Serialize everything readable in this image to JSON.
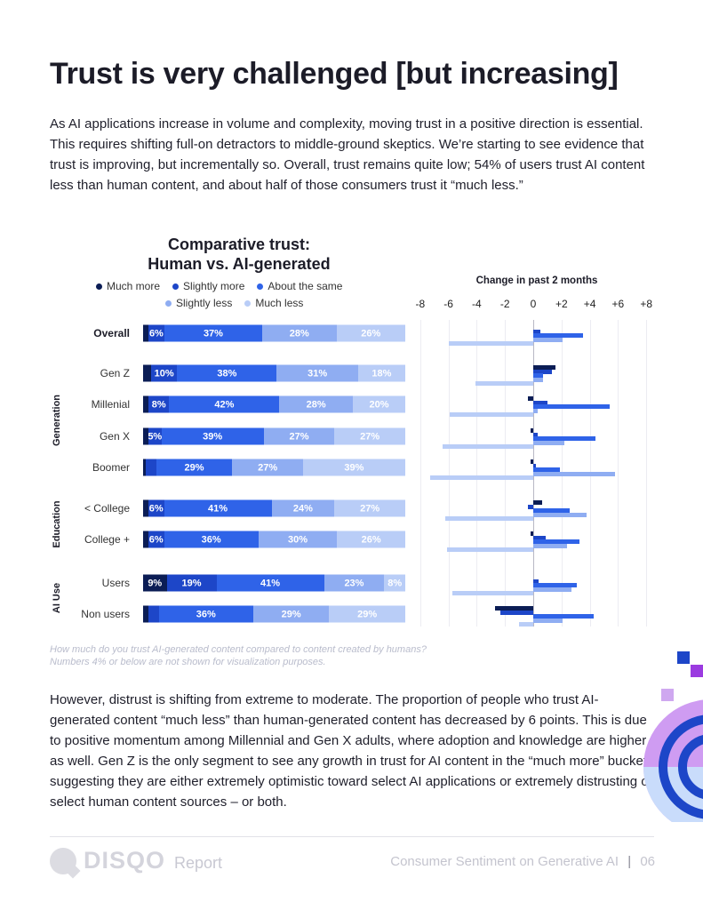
{
  "page": {
    "title": "Trust is very challenged [but increasing]",
    "intro": "As AI applications increase in volume and complexity, moving trust in a positive direction is essential. This requires shifting full-on detractors to middle-ground skeptics. We’re starting to see evidence that trust is improving, but incrementally so. Overall, trust remains quite low; 54% of users trust AI content less than human content, and about half of those consumers trust it “much less.”",
    "note_line1": "How much do you trust AI-generated content compared to content created by humans?",
    "note_line2": "Numbers 4% or below are not shown for visualization purposes.",
    "outro": "However, distrust is shifting from extreme to moderate. The proportion of people who trust AI-generated content “much less” than human-generated content has decreased by 6 points. This is due to positive momentum among Millennial and Gen X adults, where adoption and knowledge are higher as well. Gen Z is the only segment to see any growth in trust for AI content in the “much more” bucket, suggesting they are either extremely optimistic toward select AI applications or extremely distrusting of select human content sources – or both."
  },
  "footer": {
    "logo_word": "DISQO",
    "logo_sub": "Report",
    "report_name": "Consumer Sentiment on Generative AI",
    "separator": "|",
    "page_number": "06"
  },
  "colors": {
    "much_more": "#0b1d55",
    "slightly_more": "#1d46c8",
    "about_same": "#2f63e8",
    "slightly_less": "#8fadf2",
    "much_less": "#b9cdf7"
  },
  "chart_data": [
    {
      "type": "bar",
      "orientation": "horizontal-stacked",
      "title_line1": "Comparative trust:",
      "title_line2": "Human vs. AI-generated",
      "legend": [
        "Much more",
        "Slightly more",
        "About the same",
        "Slightly less",
        "Much less"
      ],
      "groups": [
        {
          "name": "",
          "rows": [
            0
          ]
        },
        {
          "name": "Generation",
          "rows": [
            1,
            2,
            3,
            4
          ]
        },
        {
          "name": "Education",
          "rows": [
            5,
            6
          ]
        },
        {
          "name": "AI Use",
          "rows": [
            7,
            8
          ]
        }
      ],
      "rows": [
        {
          "label": "Overall",
          "bold": true,
          "values": [
            2,
            6,
            37,
            28,
            26
          ],
          "labels": [
            "",
            "6%",
            "37%",
            "28%",
            "26%"
          ]
        },
        {
          "label": "Gen Z",
          "values": [
            3,
            10,
            38,
            31,
            18
          ],
          "labels": [
            "",
            "10%",
            "38%",
            "31%",
            "18%"
          ]
        },
        {
          "label": "Millenial",
          "values": [
            2,
            8,
            42,
            28,
            20
          ],
          "labels": [
            "",
            "8%",
            "42%",
            "28%",
            "20%"
          ]
        },
        {
          "label": "Gen X",
          "values": [
            2,
            5,
            39,
            27,
            27
          ],
          "labels": [
            "",
            "5%",
            "39%",
            "27%",
            "27%"
          ]
        },
        {
          "label": "Boomer",
          "values": [
            1,
            4,
            29,
            27,
            39
          ],
          "labels": [
            "",
            "",
            "29%",
            "27%",
            "39%"
          ]
        },
        {
          "label": "< College",
          "values": [
            2,
            6,
            41,
            24,
            27
          ],
          "labels": [
            "",
            "6%",
            "41%",
            "24%",
            "27%"
          ]
        },
        {
          "label": "College +",
          "values": [
            2,
            6,
            36,
            30,
            26
          ],
          "labels": [
            "",
            "6%",
            "36%",
            "30%",
            "26%"
          ]
        },
        {
          "label": "Users",
          "values": [
            9,
            19,
            41,
            23,
            8
          ],
          "labels": [
            "9%",
            "19%",
            "41%",
            "23%",
            "8%"
          ]
        },
        {
          "label": "Non users",
          "values": [
            2,
            4,
            36,
            29,
            29
          ],
          "labels": [
            "",
            "",
            "36%",
            "29%",
            "29%"
          ]
        }
      ]
    },
    {
      "type": "bar",
      "orientation": "horizontal-grouped",
      "title": "Change in past 2 months",
      "x_ticks": [
        "-8",
        "-6",
        "-4",
        "-2",
        "0",
        "+2",
        "+4",
        "+6",
        "+8"
      ],
      "xlim": [
        -8,
        8
      ],
      "series_order": [
        "Much more",
        "Slightly more",
        "About the same",
        "Slightly less",
        "Much less"
      ],
      "rows": [
        {
          "label": "Overall",
          "values": [
            0,
            0.5,
            3.5,
            2.1,
            -6.0
          ]
        },
        {
          "label": "Gen Z",
          "values": [
            1.6,
            1.3,
            0.7,
            0.7,
            -4.1
          ]
        },
        {
          "label": "Millenial",
          "values": [
            -0.4,
            1.0,
            5.4,
            0.3,
            -5.9
          ]
        },
        {
          "label": "Gen X",
          "values": [
            -0.2,
            0.3,
            4.4,
            2.2,
            -6.4
          ]
        },
        {
          "label": "Boomer",
          "values": [
            -0.2,
            0.2,
            1.9,
            5.8,
            -7.3
          ]
        },
        {
          "label": "< College",
          "values": [
            0.6,
            -0.4,
            2.6,
            3.8,
            -6.2
          ]
        },
        {
          "label": "College +",
          "values": [
            -0.2,
            0.9,
            3.3,
            2.4,
            -6.1
          ]
        },
        {
          "label": "Users",
          "values": [
            0,
            0.4,
            3.1,
            2.7,
            -5.7
          ]
        },
        {
          "label": "Non users",
          "values": [
            -2.7,
            -2.3,
            4.3,
            2.1,
            -1.0
          ]
        }
      ]
    }
  ]
}
